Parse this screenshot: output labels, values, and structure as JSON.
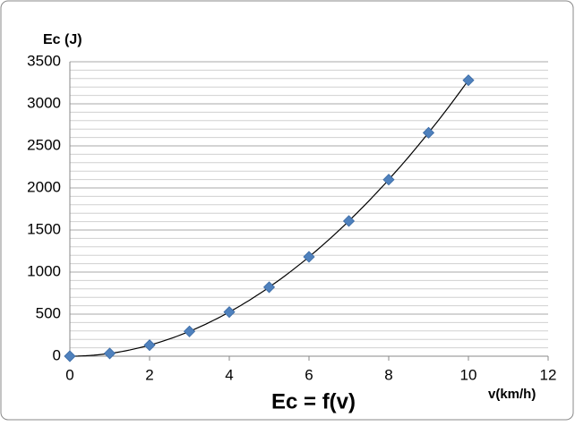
{
  "chart_data": {
    "type": "scatter",
    "title": "Ec = f(v)",
    "x_label": "v(km/h)",
    "y_label": "Ec (J)",
    "x": [
      0,
      1,
      2,
      3,
      4,
      5,
      6,
      7,
      8,
      9,
      10
    ],
    "values": [
      0,
      33,
      131,
      295,
      525,
      820,
      1181,
      1607,
      2099,
      2656,
      3280
    ],
    "color": "#4f81bd",
    "trendline": "polynomial-2",
    "trendline_color": "#000000",
    "xlim": [
      0,
      12
    ],
    "xticks": [
      0,
      2,
      4,
      6,
      8,
      10,
      12
    ],
    "ylim": [
      0,
      3500
    ],
    "yticks": [
      0,
      500,
      1000,
      1500,
      2000,
      2500,
      3000,
      3500
    ],
    "grid": true,
    "minor_grid_step": 100
  }
}
